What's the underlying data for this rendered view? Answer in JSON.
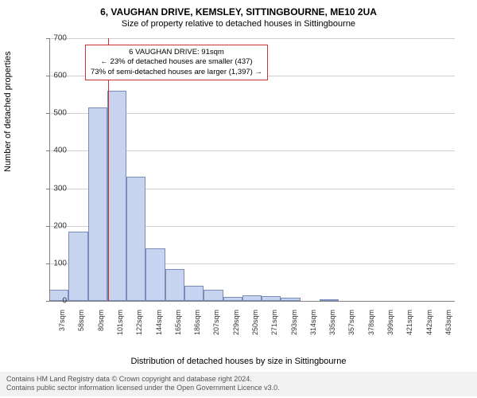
{
  "title": "6, VAUGHAN DRIVE, KEMSLEY, SITTINGBOURNE, ME10 2UA",
  "subtitle": "Size of property relative to detached houses in Sittingbourne",
  "ylabel": "Number of detached properties",
  "xlabel": "Distribution of detached houses by size in Sittingbourne",
  "chart": {
    "type": "histogram",
    "ylim": [
      0,
      700
    ],
    "ytick_step": 100,
    "yticks": [
      0,
      100,
      200,
      300,
      400,
      500,
      600,
      700
    ],
    "xticks": [
      "37sqm",
      "58sqm",
      "80sqm",
      "101sqm",
      "122sqm",
      "144sqm",
      "165sqm",
      "186sqm",
      "207sqm",
      "229sqm",
      "250sqm",
      "271sqm",
      "293sqm",
      "314sqm",
      "335sqm",
      "357sqm",
      "378sqm",
      "399sqm",
      "421sqm",
      "442sqm",
      "463sqm"
    ],
    "bars": [
      30,
      185,
      515,
      560,
      330,
      140,
      85,
      40,
      30,
      10,
      15,
      12,
      8,
      0,
      5,
      0,
      0,
      0,
      0,
      0,
      0
    ],
    "bar_fill": "#c8d4ef",
    "bar_stroke": "#7a8db8",
    "grid_color": "#d0d0d0",
    "axis_color": "#808080",
    "background": "#ffffff",
    "bar_width_ratio": 1.0,
    "marker_value": 91,
    "marker_color": "#cc3333"
  },
  "annotation": {
    "line1": "6 VAUGHAN DRIVE: 91sqm",
    "line2": "← 23% of detached houses are smaller (437)",
    "line3": "73% of semi-detached houses are larger (1,397) →",
    "border_color": "#cc3333",
    "fontsize": 9.5
  },
  "footer": {
    "line1": "Contains HM Land Registry data © Crown copyright and database right 2024.",
    "line2": "Contains public sector information licensed under the Open Government Licence v3.0.",
    "background": "#f2f2f2"
  }
}
